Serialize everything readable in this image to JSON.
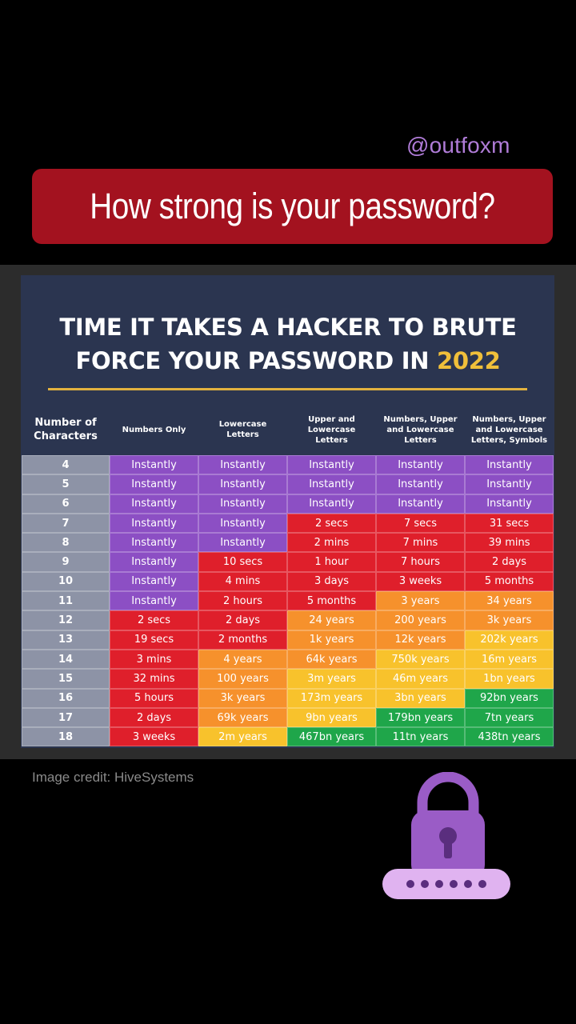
{
  "handle": "@outfoxm",
  "banner": {
    "title": "How strong is your password?"
  },
  "card": {
    "title_line1": "TIME IT TAKES A HACKER TO BRUTE",
    "title_line2_prefix": "FORCE YOUR PASSWORD IN ",
    "title_year": "2022",
    "columns": [
      "Number of\nCharacters",
      "Numbers Only",
      "Lowercase\nLetters",
      "Upper and\nLowercase\nLetters",
      "Numbers, Upper\nand Lowercase\nLetters",
      "Numbers, Upper\nand Lowercase\nLetters, Symbols"
    ],
    "rows": [
      {
        "n": "4",
        "cells": [
          "Instantly",
          "Instantly",
          "Instantly",
          "Instantly",
          "Instantly"
        ],
        "colors": [
          "purple",
          "purple",
          "purple",
          "purple",
          "purple"
        ]
      },
      {
        "n": "5",
        "cells": [
          "Instantly",
          "Instantly",
          "Instantly",
          "Instantly",
          "Instantly"
        ],
        "colors": [
          "purple",
          "purple",
          "purple",
          "purple",
          "purple"
        ]
      },
      {
        "n": "6",
        "cells": [
          "Instantly",
          "Instantly",
          "Instantly",
          "Instantly",
          "Instantly"
        ],
        "colors": [
          "purple",
          "purple",
          "purple",
          "purple",
          "purple"
        ]
      },
      {
        "n": "7",
        "cells": [
          "Instantly",
          "Instantly",
          "2 secs",
          "7 secs",
          "31 secs"
        ],
        "colors": [
          "purple",
          "purple",
          "red",
          "red",
          "red"
        ]
      },
      {
        "n": "8",
        "cells": [
          "Instantly",
          "Instantly",
          "2 mins",
          "7 mins",
          "39 mins"
        ],
        "colors": [
          "purple",
          "purple",
          "red",
          "red",
          "red"
        ]
      },
      {
        "n": "9",
        "cells": [
          "Instantly",
          "10 secs",
          "1 hour",
          "7 hours",
          "2 days"
        ],
        "colors": [
          "purple",
          "red",
          "red",
          "red",
          "red"
        ]
      },
      {
        "n": "10",
        "cells": [
          "Instantly",
          "4 mins",
          "3 days",
          "3 weeks",
          "5 months"
        ],
        "colors": [
          "purple",
          "red",
          "red",
          "red",
          "red"
        ]
      },
      {
        "n": "11",
        "cells": [
          "Instantly",
          "2 hours",
          "5 months",
          "3 years",
          "34 years"
        ],
        "colors": [
          "purple",
          "red",
          "red",
          "orange",
          "orange"
        ]
      },
      {
        "n": "12",
        "cells": [
          "2 secs",
          "2 days",
          "24 years",
          "200 years",
          "3k years"
        ],
        "colors": [
          "red",
          "red",
          "orange",
          "orange",
          "orange"
        ]
      },
      {
        "n": "13",
        "cells": [
          "19 secs",
          "2 months",
          "1k years",
          "12k years",
          "202k years"
        ],
        "colors": [
          "red",
          "red",
          "orange",
          "orange",
          "yellow"
        ]
      },
      {
        "n": "14",
        "cells": [
          "3 mins",
          "4 years",
          "64k years",
          "750k years",
          "16m years"
        ],
        "colors": [
          "red",
          "orange",
          "orange",
          "yellow",
          "yellow"
        ]
      },
      {
        "n": "15",
        "cells": [
          "32 mins",
          "100 years",
          "3m years",
          "46m years",
          "1bn years"
        ],
        "colors": [
          "red",
          "orange",
          "yellow",
          "yellow",
          "yellow"
        ]
      },
      {
        "n": "16",
        "cells": [
          "5 hours",
          "3k years",
          "173m years",
          "3bn years",
          "92bn years"
        ],
        "colors": [
          "red",
          "orange",
          "yellow",
          "yellow",
          "green"
        ]
      },
      {
        "n": "17",
        "cells": [
          "2 days",
          "69k years",
          "9bn years",
          "179bn years",
          "7tn years"
        ],
        "colors": [
          "red",
          "orange",
          "yellow",
          "green",
          "green"
        ]
      },
      {
        "n": "18",
        "cells": [
          "3 weeks",
          "2m years",
          "467bn years",
          "11tn years",
          "438tn years"
        ],
        "colors": [
          "red",
          "yellow",
          "green",
          "green",
          "green"
        ]
      }
    ]
  },
  "credit": "Image credit: HiveSystems",
  "lock_graphic": {
    "icon": "padlock-icon",
    "password_dots": 6,
    "color": "#9a5cc6"
  },
  "colors": {
    "banner": "#a3121f",
    "card_bg": "#2b3550",
    "accent_year": "#f0bf3a",
    "purple": "#8c4fc4",
    "red": "#df1f2b",
    "orange": "#f6912c",
    "yellow": "#f8c22c",
    "green": "#1fa64a"
  }
}
